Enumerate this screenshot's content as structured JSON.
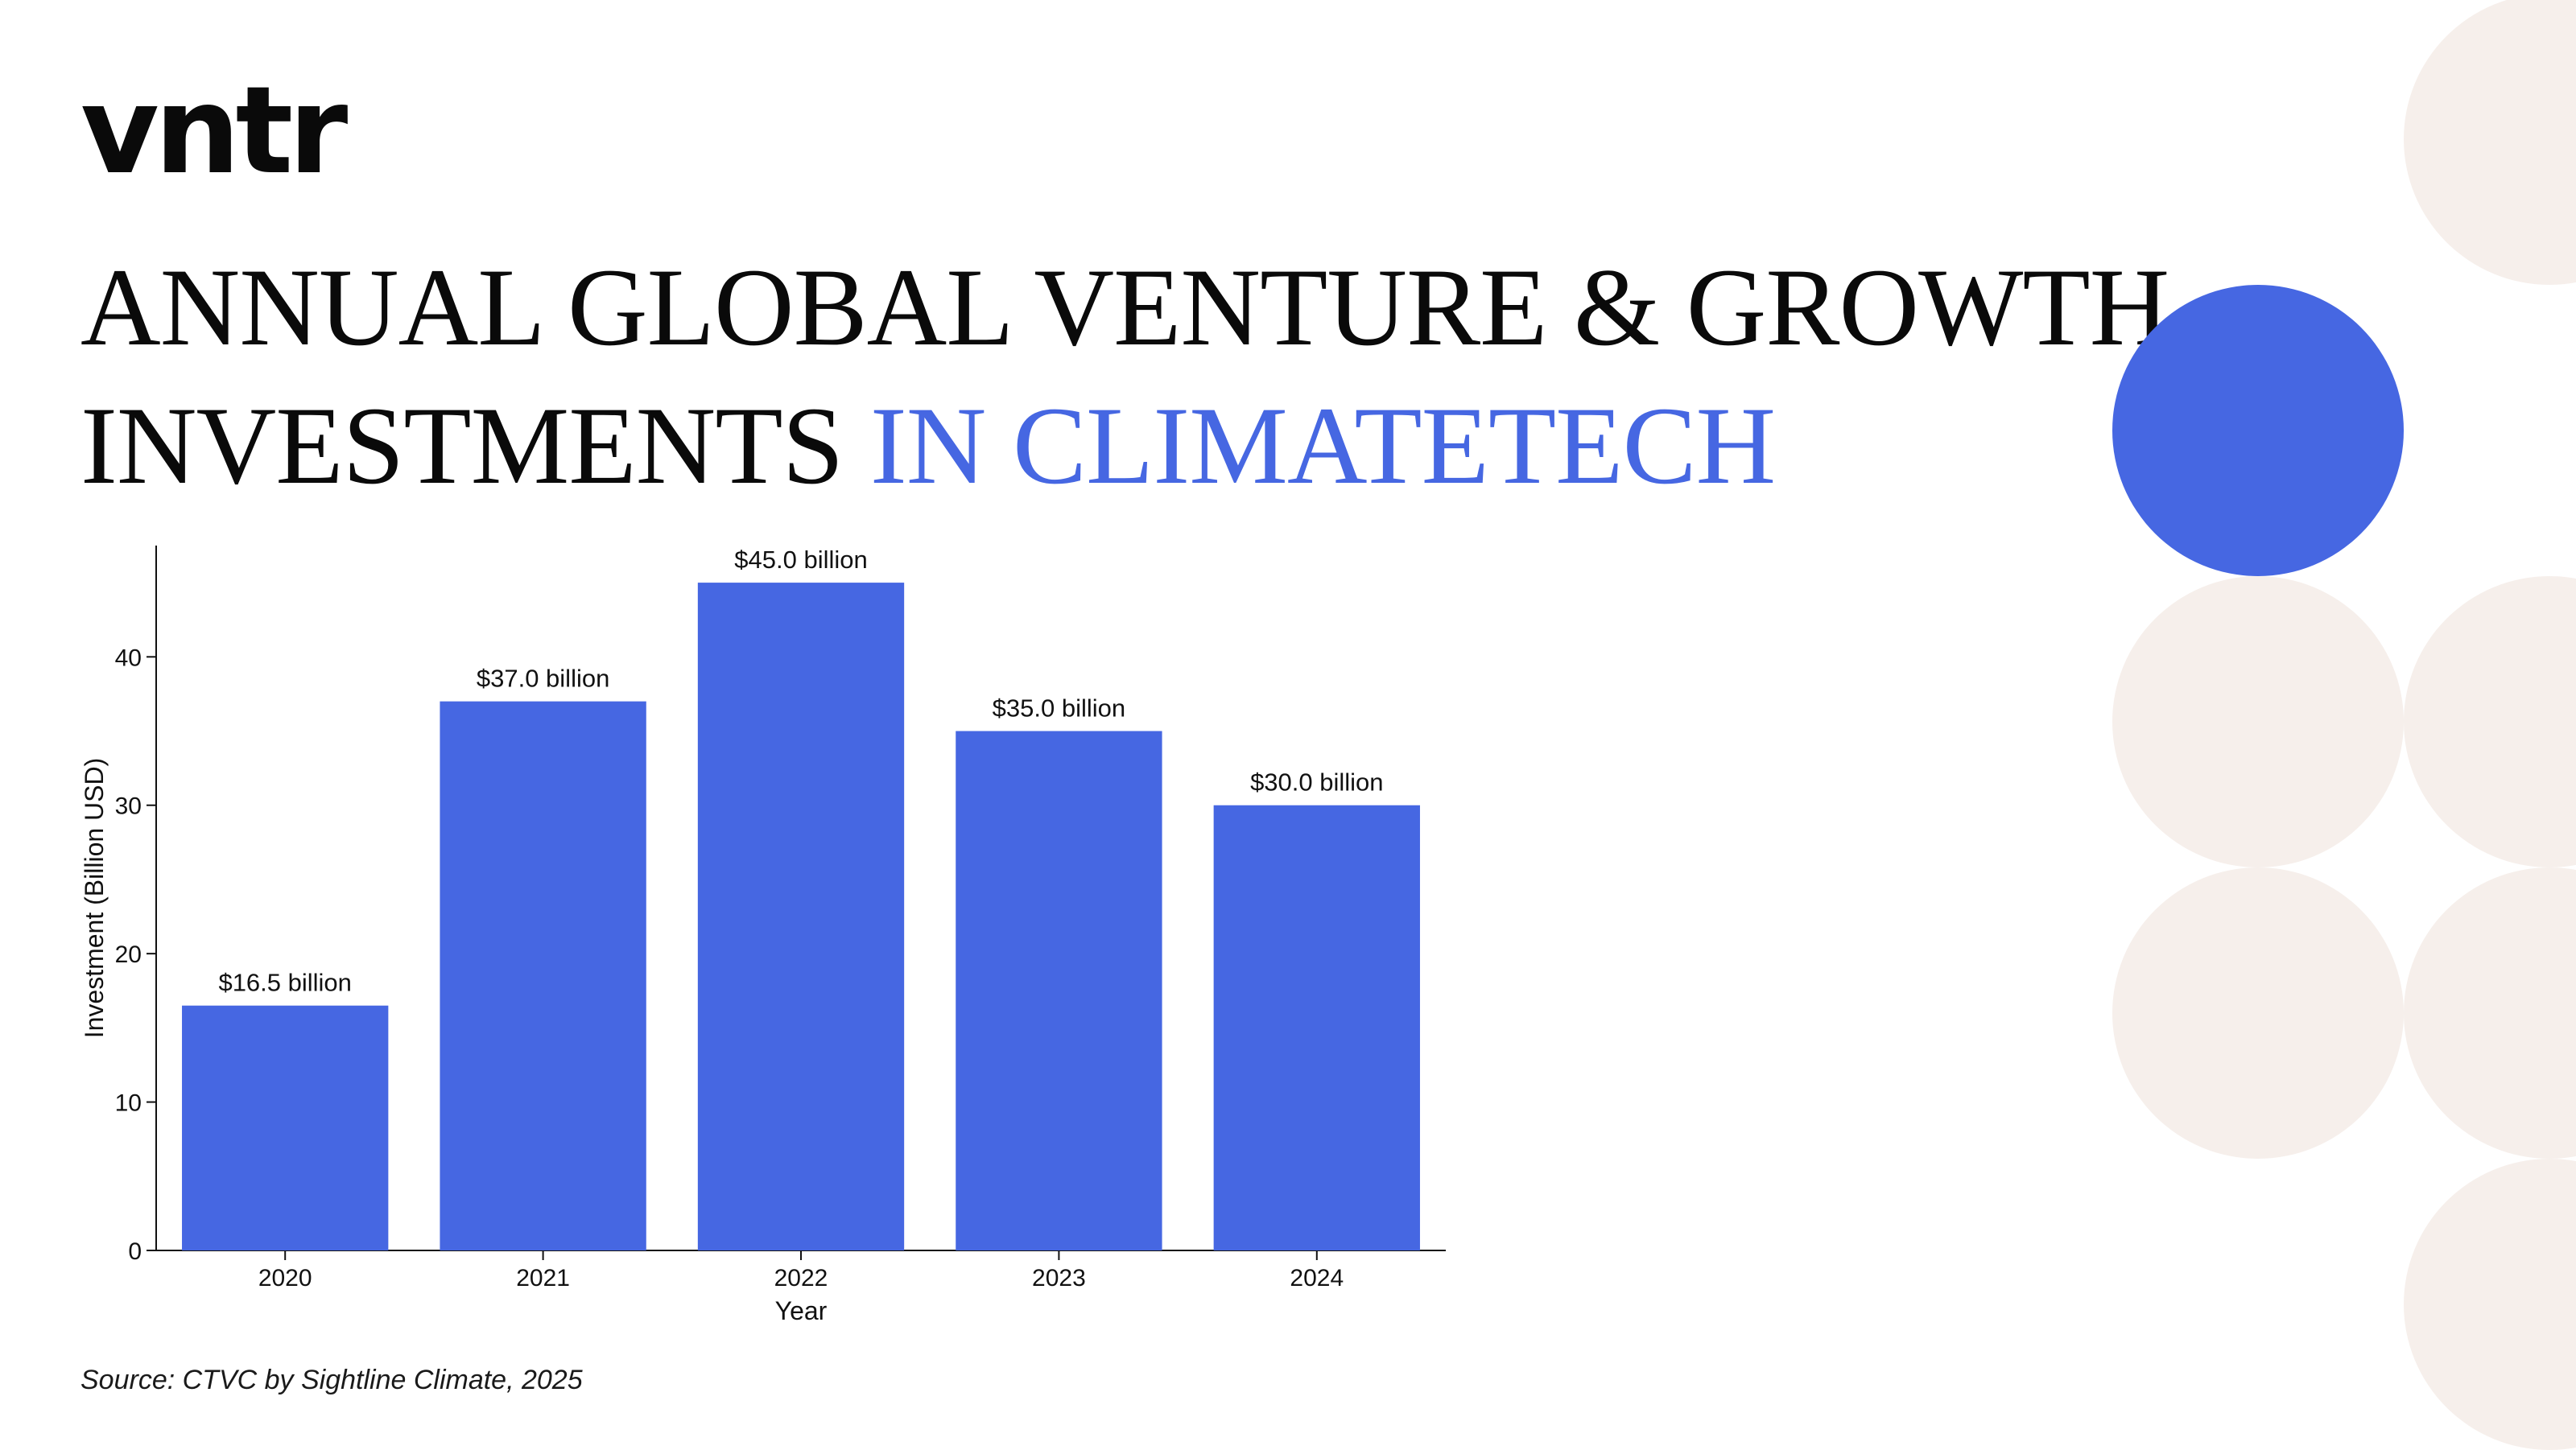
{
  "brand": {
    "logo_text": "vntr"
  },
  "title": {
    "line1": "ANNUAL GLOBAL VENTURE & GROWTH",
    "line2_main": "INVESTMENTS",
    "line2_accent": "IN CLIMATETECH"
  },
  "source": "Source: CTVC by Sightline Climate, 2025",
  "colors": {
    "bar": "#4667e2",
    "accent": "#4667e2",
    "decor_beige": "#f6efeb",
    "text": "#111111"
  },
  "chart_data": {
    "type": "bar",
    "categories": [
      "2020",
      "2021",
      "2022",
      "2023",
      "2024"
    ],
    "values": [
      16.5,
      37.0,
      45.0,
      35.0,
      30.0
    ],
    "data_labels": [
      "$16.5 billion",
      "$37.0 billion",
      "$45.0 billion",
      "$35.0 billion",
      "$30.0 billion"
    ],
    "xlabel": "Year",
    "ylabel": "Investment (Billion USD)",
    "ylim": [
      0,
      47.5
    ],
    "yticks": [
      0,
      10,
      20,
      30,
      40
    ],
    "grid": false,
    "legend": "none"
  }
}
